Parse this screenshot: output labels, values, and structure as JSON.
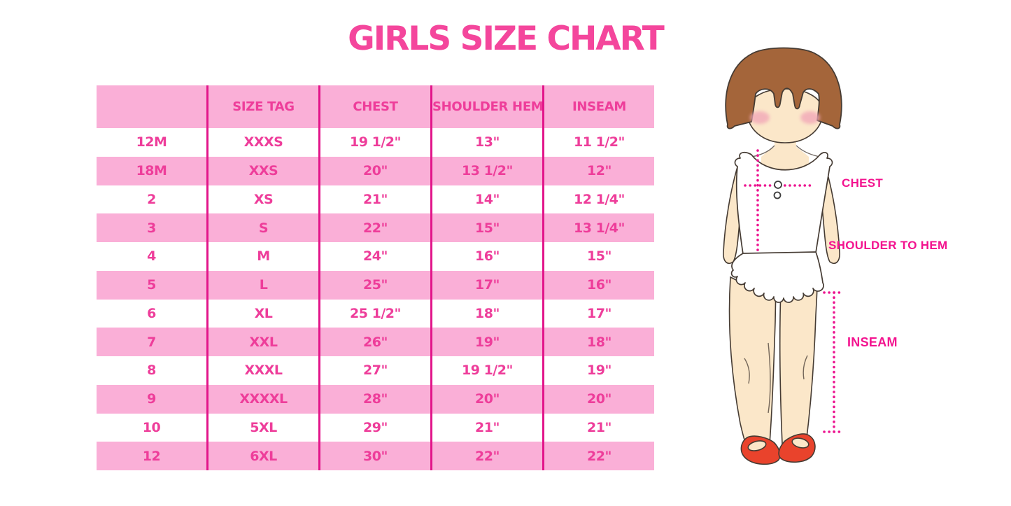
{
  "title": "GIRLS SIZE CHART",
  "chart_data": {
    "type": "table",
    "title": "GIRLS SIZE CHART",
    "columns": [
      "",
      "SIZE TAG",
      "CHEST",
      "SHOULDER HEM",
      "INSEAM"
    ],
    "rows": [
      [
        "12M",
        "XXXS",
        "19 1/2\"",
        "13\"",
        "11 1/2\""
      ],
      [
        "18M",
        "XXS",
        "20\"",
        "13 1/2\"",
        "12\""
      ],
      [
        "2",
        "XS",
        "21\"",
        "14\"",
        "12 1/4\""
      ],
      [
        "3",
        "S",
        "22\"",
        "15\"",
        "13 1/4\""
      ],
      [
        "4",
        "M",
        "24\"",
        "16\"",
        "15\""
      ],
      [
        "5",
        "L",
        "25\"",
        "17\"",
        "16\""
      ],
      [
        "6",
        "XL",
        "25 1/2\"",
        "18\"",
        "17\""
      ],
      [
        "7",
        "XXL",
        "26\"",
        "19\"",
        "18\""
      ],
      [
        "8",
        "XXXL",
        "27\"",
        "19 1/2\"",
        "19\""
      ],
      [
        "9",
        "XXXXL",
        "28\"",
        "20\"",
        "20\""
      ],
      [
        "10",
        "5XL",
        "29\"",
        "21\"",
        "21\""
      ],
      [
        "12",
        "6XL",
        "30\"",
        "22\"",
        "22\""
      ]
    ],
    "row_shading": "alternating pink/white, header pink",
    "legend_position": "none",
    "grid": "vertical dividers only"
  },
  "figure": {
    "description": "illustration of girl with measurement guides",
    "labels": {
      "chest": "CHEST",
      "shoulder_to_hem": "SHOULDER TO HEM",
      "inseam": "INSEAM"
    }
  },
  "colors": {
    "title_pink": "#F4469C",
    "row_pink": "#FAAFD7",
    "divider_pink": "#E2158A",
    "cell_text": "#EE3D9A",
    "label_magenta": "#F3138F",
    "dot_pink": "#EC1590",
    "hair_brown": "#A4653A",
    "skin": "#FBE7C9",
    "blush": "#F2A8B8",
    "shoe_red": "#E9432C",
    "outline_dark": "#453B33",
    "garment_white": "#FFFFFF"
  }
}
